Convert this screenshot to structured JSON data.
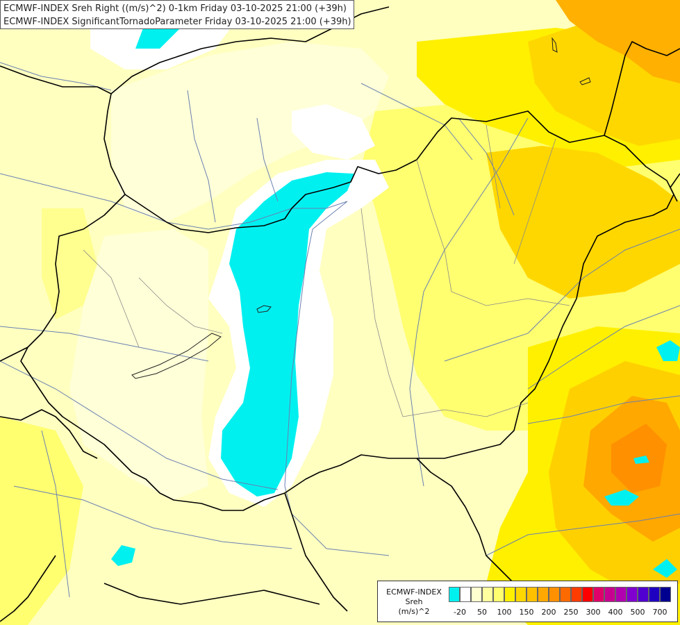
{
  "title_lines": [
    "ECMWF-INDEX Sreh Right ((m/s)^2) 0-1km Friday 03-10-2025 21:00 (+39h)",
    "ECMWF-INDEX SignificantTornadoParameter Friday 03-10-2025 21:00 (+39h)"
  ],
  "legend": {
    "model": "ECMWF-INDEX",
    "parameter": "Sreh",
    "unit": "(m/s)^2",
    "colors": [
      "#00f0f0",
      "#ffffff",
      "#ffffd0",
      "#ffffa0",
      "#ffff70",
      "#fff000",
      "#ffd700",
      "#ffc000",
      "#ffa800",
      "#ff9000",
      "#ff6a00",
      "#ff3c00",
      "#ff0000",
      "#e0006a",
      "#c80090",
      "#b000b0",
      "#8000d0",
      "#5000d0",
      "#2000c0",
      "#000090"
    ],
    "tick_labels": [
      "-20",
      "50",
      "100",
      "150",
      "200",
      "250",
      "300",
      "400",
      "500",
      "700"
    ]
  }
}
